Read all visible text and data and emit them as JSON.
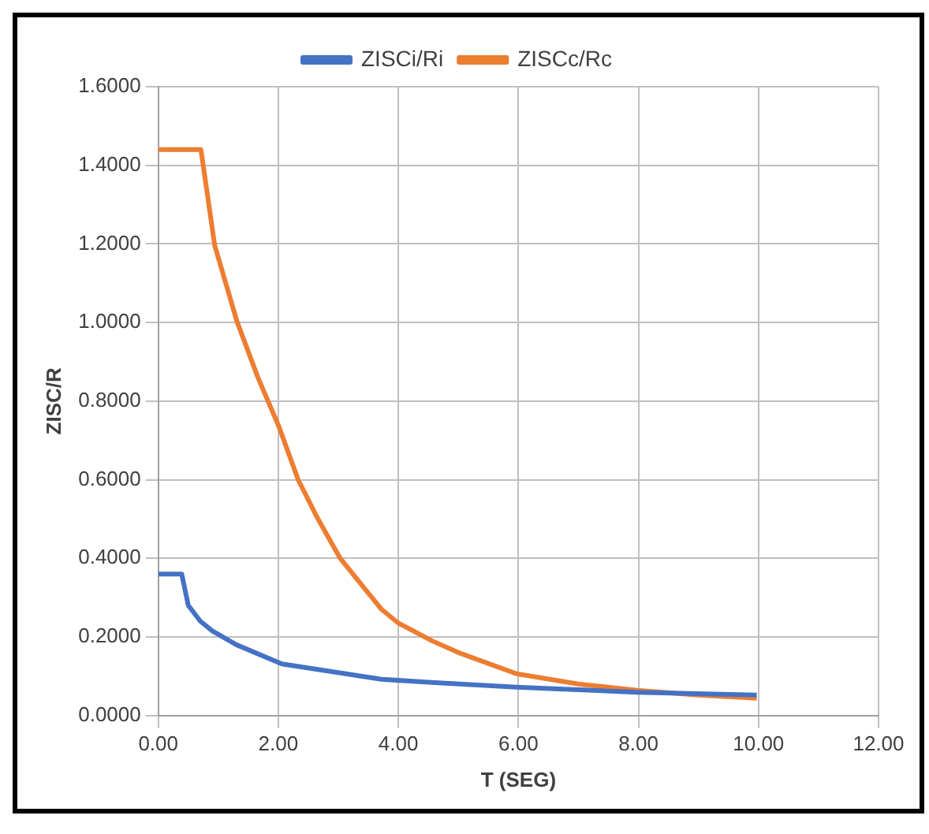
{
  "chart_data": {
    "type": "line",
    "xlabel": "T (SEG)",
    "ylabel": "ZISC/R",
    "legend": "top",
    "grid": true,
    "marker": "none",
    "xlim": [
      0,
      12
    ],
    "xticks": [
      {
        "value": 0,
        "label": "0.00"
      },
      {
        "value": 2,
        "label": "2.00"
      },
      {
        "value": 4,
        "label": "4.00"
      },
      {
        "value": 6,
        "label": "6.00"
      },
      {
        "value": 8,
        "label": "8.00"
      },
      {
        "value": 10,
        "label": "10.00"
      },
      {
        "value": 12,
        "label": "12.00"
      }
    ],
    "ylim": [
      0,
      1.6
    ],
    "yticks": [
      {
        "value": 0,
        "label": "0.0000"
      },
      {
        "value": 0.2,
        "label": "0.2000"
      },
      {
        "value": 0.4,
        "label": "0.4000"
      },
      {
        "value": 0.6,
        "label": "0.6000"
      },
      {
        "value": 0.8,
        "label": "0.8000"
      },
      {
        "value": 1,
        "label": "1.0000"
      },
      {
        "value": 1.2,
        "label": "1.2000"
      },
      {
        "value": 1.4,
        "label": "1.4000"
      },
      {
        "value": 1.6,
        "label": "1.6000"
      }
    ],
    "series": [
      {
        "name": "ZISCi/Ri",
        "color": "#4472c4",
        "x": [
          0,
          0.39,
          0.5,
          0.7,
          0.9,
          1.3,
          2.06,
          3.72,
          4.56,
          5.97,
          7.98,
          9.97
        ],
        "values": [
          0.36,
          0.36,
          0.28,
          0.24,
          0.215,
          0.18,
          0.131,
          0.092,
          0.084,
          0.072,
          0.059,
          0.052
        ]
      },
      {
        "name": "ZISCc/Rc",
        "color": "#ed7d31",
        "x": [
          0,
          0.71,
          0.94,
          1.31,
          1.66,
          2.01,
          2.33,
          2.66,
          3.03,
          3.4,
          3.72,
          4.0,
          4.56,
          5.0,
          5.97,
          7.0,
          7.98,
          9.0,
          9.97
        ],
        "values": [
          1.44,
          1.44,
          1.196,
          1.003,
          0.86,
          0.735,
          0.6,
          0.5,
          0.4,
          0.33,
          0.27,
          0.235,
          0.19,
          0.16,
          0.106,
          0.08,
          0.064,
          0.052,
          0.044
        ]
      }
    ]
  }
}
